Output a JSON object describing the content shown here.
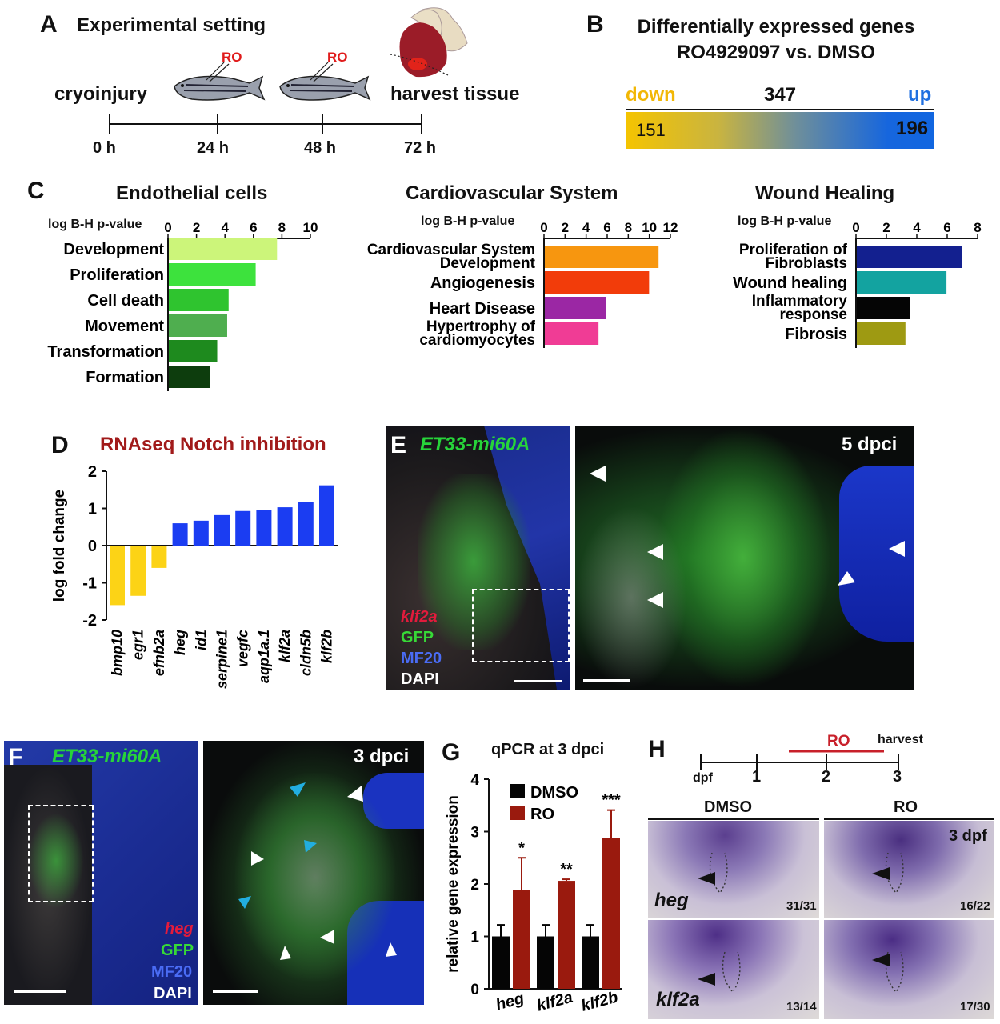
{
  "panelA": {
    "label": "A",
    "title": "Experimental setting",
    "left": "cryoinjury",
    "right": "harvest tissue",
    "ro": "RO",
    "ticks": [
      "0 h",
      "24 h",
      "48 h",
      "72 h"
    ]
  },
  "panelB": {
    "label": "B",
    "title1": "Differentially expressed genes",
    "title2": "RO4929097  vs. DMSO",
    "down": "down",
    "total": "347",
    "up": "up",
    "down_n": "151",
    "up_n": "196",
    "colors": {
      "down": "#f5c400",
      "up": "#1166e0"
    }
  },
  "panelC": {
    "label": "C",
    "axis_label": "log B-H p-value",
    "charts": [
      {
        "title": "Endothelial cells",
        "categories": [
          "Development",
          "Proliferation",
          "Cell death",
          "Movement",
          "Transformation",
          "Formation"
        ],
        "values": [
          7.6,
          6.1,
          4.2,
          4.1,
          3.4,
          2.9
        ],
        "colors": [
          "#ccf57a",
          "#3de23d",
          "#2fc42f",
          "#4fae4f",
          "#1e8a1e",
          "#0d3d0d"
        ],
        "ticks": [
          "0",
          "2",
          "4",
          "6",
          "8",
          "10"
        ],
        "xlim": [
          0,
          10
        ]
      },
      {
        "title": "Cardiovascular System",
        "categories": [
          "Cardiovascular System Development",
          "Angiogenesis",
          "Heart Disease",
          "Hypertrophy of cardiomyocytes"
        ],
        "values": [
          10.8,
          9.9,
          5.8,
          5.1
        ],
        "colors": [
          "#f7960f",
          "#f23c0a",
          "#9b27a4",
          "#f03c95"
        ],
        "ticks": [
          "0",
          "2",
          "4",
          "6",
          "8",
          "10",
          "12"
        ],
        "xlim": [
          0,
          12
        ]
      },
      {
        "title": "Wound Healing",
        "categories": [
          "Proliferation of Fibroblasts",
          "Wound healing",
          "Inflammatory response",
          "Fibrosis"
        ],
        "values": [
          6.9,
          5.9,
          3.5,
          3.2
        ],
        "colors": [
          "#13208f",
          "#13a3a0",
          "#050505",
          "#9e9a12"
        ],
        "ticks": [
          "0",
          "2",
          "4",
          "6",
          "8"
        ],
        "xlim": [
          0,
          8
        ]
      }
    ]
  },
  "chart_data": [
    {
      "type": "bar",
      "title": "RNAseq Notch inhibition",
      "ylabel": "log fold change",
      "categories": [
        "bmp10",
        "egr1",
        "efnb2a",
        "heg",
        "id1",
        "serpine1",
        "vegfc",
        "aqp1a.1",
        "klf2a",
        "cldn5b",
        "klf2b"
      ],
      "values": [
        -1.6,
        -1.35,
        -0.6,
        0.6,
        0.67,
        0.82,
        0.93,
        0.95,
        1.03,
        1.17,
        1.62
      ],
      "ylim": [
        -2,
        2
      ],
      "yticks": [
        "2",
        "1",
        "0",
        "-1",
        "-2"
      ],
      "colors": {
        "down": "#fcd316",
        "up": "#1b3df2"
      }
    },
    {
      "type": "bar",
      "title": "qPCR at 3 dpci",
      "ylabel": "relative gene expression",
      "categories": [
        "heg",
        "klf2a",
        "klf2b"
      ],
      "series": [
        {
          "name": "DMSO",
          "values": [
            1.0,
            1.0,
            1.0
          ],
          "errors": [
            0.22,
            0.22,
            0.22
          ]
        },
        {
          "name": "RO",
          "values": [
            1.88,
            2.06,
            2.88
          ],
          "errors": [
            0.62,
            0.03,
            0.53
          ]
        }
      ],
      "significance": [
        "*",
        "**",
        "***"
      ],
      "ylim": [
        0,
        4
      ],
      "yticks": [
        "4",
        "3",
        "2",
        "1",
        "0"
      ],
      "colors": {
        "DMSO": "#050505",
        "RO": "#9a1a0e"
      }
    }
  ],
  "panelD": {
    "label": "D",
    "title": "RNAseq Notch inhibition",
    "ylabel": "log fold change"
  },
  "panelE": {
    "label": "E",
    "transgene": "ET33-mi60A",
    "time": "5 dpci",
    "legend": [
      "klf2a",
      "GFP",
      "MF20",
      "DAPI"
    ]
  },
  "panelF": {
    "label": "F",
    "transgene": "ET33-mi60A",
    "time": "3 dpci",
    "legend": [
      "heg",
      "GFP",
      "MF20",
      "DAPI"
    ]
  },
  "panelG": {
    "label": "G",
    "title": "qPCR at 3 dpci",
    "ylabel": "relative gene expression",
    "legend": [
      "DMSO",
      "RO"
    ]
  },
  "panelH": {
    "label": "H",
    "ro": "RO",
    "harvest": "harvest",
    "dpf": "dpf",
    "ticks": [
      "1",
      "2",
      "3"
    ],
    "col1": "DMSO",
    "col2": "RO",
    "stage": "3 dpf",
    "genes": [
      "heg",
      "klf2a"
    ],
    "counts": [
      "31/31",
      "16/22",
      "13/14",
      "17/30"
    ]
  }
}
